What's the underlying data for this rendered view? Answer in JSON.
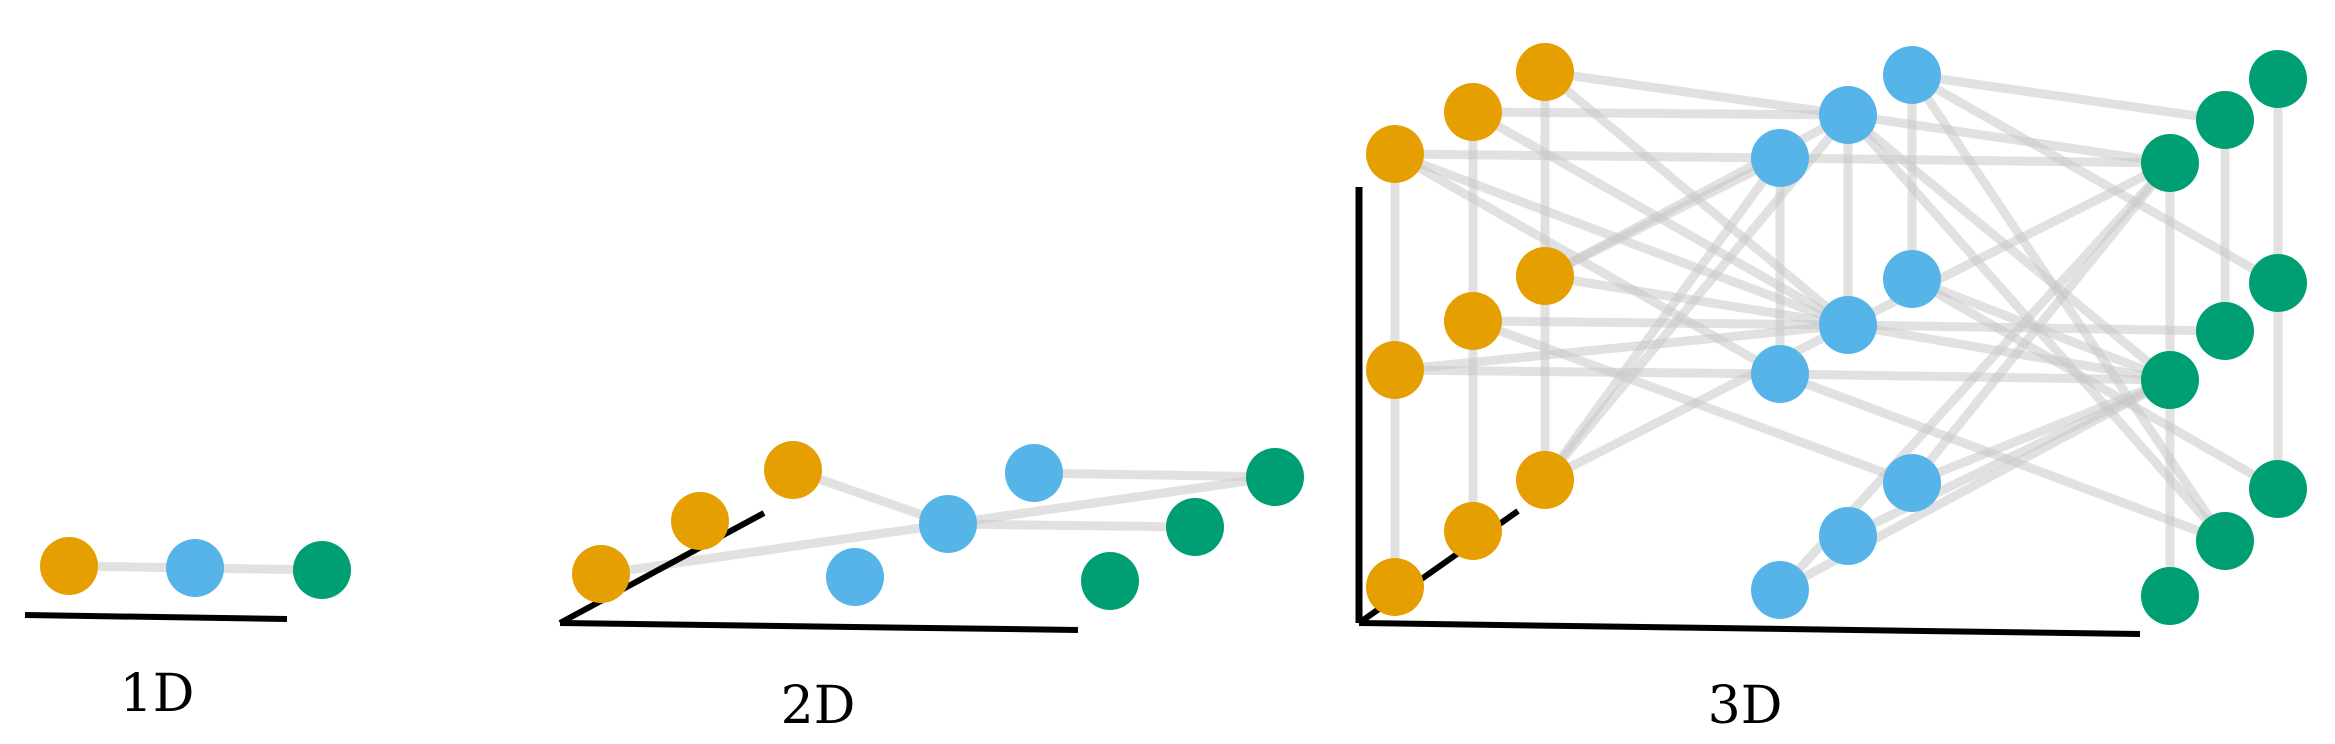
{
  "colors": {
    "orange": "#e69f00",
    "blue": "#56b4e9",
    "green": "#009e73",
    "edge": "#c8c8c8",
    "axis": "#000000"
  },
  "panels": [
    {
      "id": "1d",
      "caption": "1D"
    },
    {
      "id": "2d",
      "caption": "2D"
    },
    {
      "id": "3d",
      "caption": "3D"
    }
  ]
}
